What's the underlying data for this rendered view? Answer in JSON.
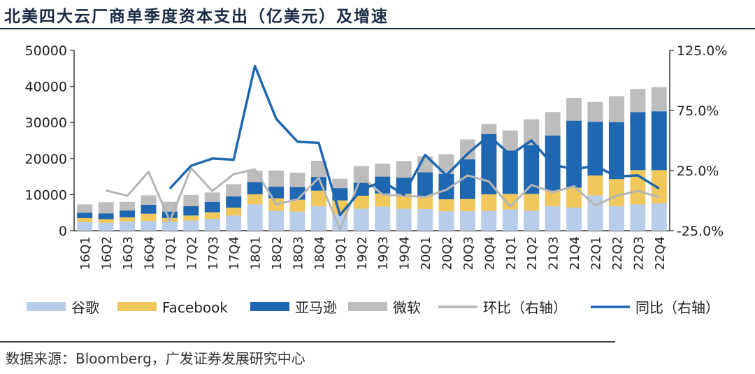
{
  "header": {
    "title": "北美四大云厂商单季度资本支出（亿美元）及增速"
  },
  "footer": {
    "source": "数据来源：Bloomberg，广发证券发展研究中心"
  },
  "chart_data": {
    "type": "bar",
    "stacked": true,
    "categories": [
      "16Q1",
      "16Q2",
      "16Q3",
      "16Q4",
      "17Q1",
      "17Q2",
      "17Q3",
      "17Q4",
      "18Q1",
      "18Q2",
      "18Q3",
      "18Q4",
      "19Q1",
      "19Q2",
      "19Q3",
      "19Q4",
      "20Q1",
      "20Q2",
      "20Q3",
      "20Q4",
      "21Q1",
      "21Q2",
      "21Q3",
      "21Q4",
      "22Q1",
      "22Q2",
      "22Q3",
      "22Q4"
    ],
    "series": [
      {
        "name": "谷歌",
        "type": "bar",
        "axis": "left",
        "color": "#b8cde9",
        "values": [
          2400,
          2200,
          2600,
          2700,
          2500,
          2800,
          3300,
          4200,
          7300,
          5500,
          5300,
          6800,
          4600,
          6100,
          6700,
          6100,
          6000,
          5400,
          5400,
          5500,
          5900,
          5500,
          6800,
          6400,
          9800,
          6800,
          7300,
          7600
        ]
      },
      {
        "name": "Facebook",
        "type": "bar",
        "axis": "left",
        "color": "#f0c75a",
        "values": [
          1100,
          1000,
          1100,
          2000,
          1000,
          1400,
          1800,
          2200,
          2800,
          3500,
          3300,
          4300,
          3800,
          3600,
          3600,
          4100,
          3600,
          3300,
          3400,
          4600,
          4300,
          4700,
          4300,
          5500,
          5500,
          7500,
          9500,
          9200
        ]
      },
      {
        "name": "亚马逊",
        "type": "bar",
        "axis": "left",
        "color": "#1f67b0",
        "values": [
          1500,
          1600,
          1900,
          2500,
          1800,
          2600,
          2900,
          3100,
          3400,
          3200,
          3500,
          3800,
          3400,
          3600,
          4700,
          4500,
          6600,
          7000,
          11000,
          16700,
          12000,
          13500,
          15300,
          18600,
          14900,
          15800,
          16100,
          16300
        ]
      },
      {
        "name": "微软",
        "type": "bar",
        "axis": "left",
        "color": "#bdbdbd",
        "values": [
          2300,
          3100,
          2400,
          2600,
          2700,
          3100,
          2600,
          3400,
          3100,
          4500,
          4000,
          4500,
          2600,
          4600,
          3600,
          4600,
          4400,
          5500,
          5500,
          2800,
          5600,
          7200,
          6500,
          6300,
          5500,
          7200,
          6400,
          6700
        ]
      },
      {
        "name": "环比（右轴）",
        "type": "line",
        "axis": "right",
        "color": "#b5b5b5",
        "values": [
          null,
          0.085,
          0.04,
          0.24,
          -0.17,
          0.27,
          0.08,
          0.22,
          0.26,
          -0.03,
          0.01,
          0.19,
          -0.24,
          0.2,
          0.05,
          0.04,
          0.03,
          0.09,
          0.21,
          0.16,
          -0.05,
          0.13,
          0.07,
          0.12,
          -0.04,
          0.04,
          0.08,
          0.03
        ]
      },
      {
        "name": "同比（右轴）",
        "type": "line",
        "axis": "right",
        "color": "#1f67b0",
        "values": [
          null,
          null,
          null,
          null,
          0.1,
          0.29,
          0.35,
          0.34,
          1.12,
          0.68,
          0.49,
          0.48,
          -0.12,
          0.09,
          0.16,
          0.05,
          0.38,
          0.21,
          0.39,
          0.54,
          0.38,
          0.5,
          0.3,
          0.26,
          0.29,
          0.2,
          0.21,
          0.1
        ]
      }
    ],
    "left_axis": {
      "min": 0,
      "max": 50000,
      "ticks": [
        "0",
        "10000",
        "20000",
        "30000",
        "40000",
        "50000"
      ]
    },
    "right_axis": {
      "min": -0.25,
      "max": 1.25,
      "ticks": [
        "-25.0%",
        "25.0%",
        "75.0%",
        "125.0%"
      ]
    },
    "grid": false,
    "legend_position": "bottom"
  }
}
